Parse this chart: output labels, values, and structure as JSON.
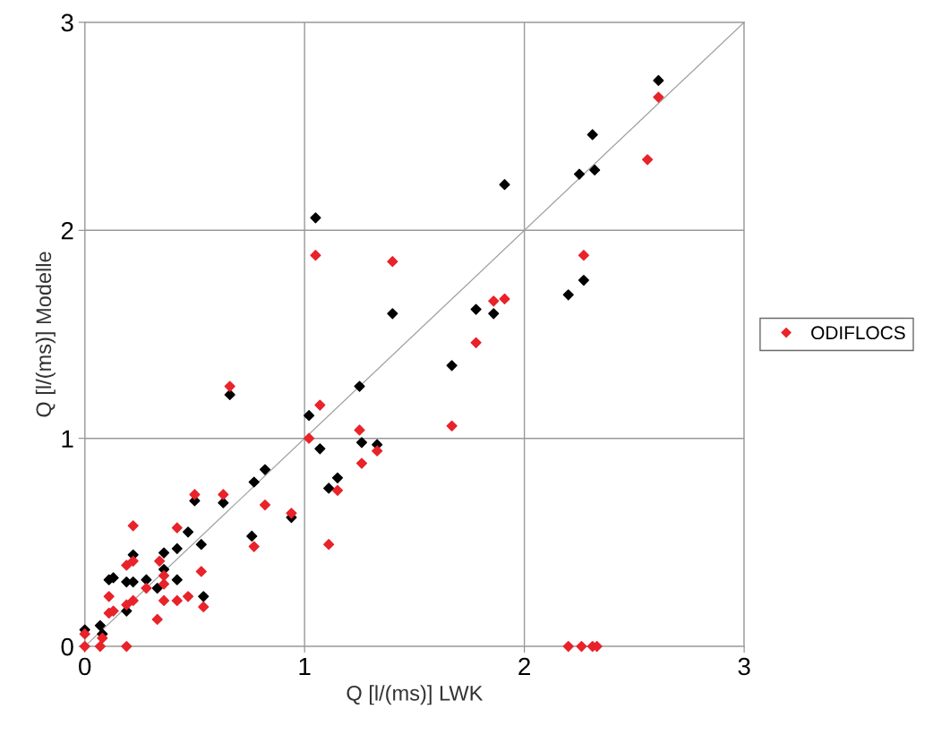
{
  "chart_data": {
    "type": "scatter",
    "xlabel": "Q [l/(ms)] LWK",
    "ylabel": "Q [l/(ms)] Modelle",
    "xlim": [
      0,
      3
    ],
    "ylim": [
      0,
      3
    ],
    "xticks": [
      0,
      1,
      2,
      3
    ],
    "yticks": [
      0,
      1,
      2,
      3
    ],
    "grid": true,
    "legend": "right",
    "marker": "diamond",
    "series": [
      {
        "color": "#000000",
        "x": [
          0,
          0.07,
          0.08,
          0.11,
          0.13,
          0.19,
          0.22,
          0.19,
          0.22,
          0.28,
          0.33,
          0.36,
          0.36,
          0.42,
          0.42,
          0.47,
          0.5,
          0.54,
          0.53,
          0.63,
          0.66,
          0.76,
          0.77,
          0.82,
          0.94,
          1.02,
          1.07,
          1.15,
          1.11,
          1.25,
          1.26,
          1.33,
          1.05,
          1.4,
          1.91,
          1.78,
          1.86,
          2.61,
          2.31,
          2.25,
          2.32,
          2.27,
          2.2,
          1.67
        ],
        "values": [
          0.08,
          0.1,
          0.06,
          0.32,
          0.33,
          0.31,
          0.31,
          0.17,
          0.44,
          0.32,
          0.28,
          0.45,
          0.37,
          0.47,
          0.32,
          0.55,
          0.7,
          0.24,
          0.49,
          0.69,
          1.21,
          0.53,
          0.79,
          0.85,
          0.62,
          1.11,
          0.95,
          0.81,
          0.76,
          1.25,
          0.98,
          0.97,
          2.06,
          1.6,
          2.22,
          1.62,
          1.6,
          2.72,
          2.46,
          2.27,
          2.29,
          1.76,
          1.69,
          1.35
        ]
      },
      {
        "name": "ODIFLOCS",
        "color": "#e8232a",
        "x": [
          0,
          0,
          0.07,
          0.08,
          0.19,
          0.11,
          0.11,
          0.13,
          0.19,
          0.22,
          0.22,
          0.19,
          0.22,
          0.28,
          0.33,
          0.34,
          0.36,
          0.36,
          0.36,
          0.42,
          0.42,
          0.47,
          0.5,
          0.53,
          0.54,
          0.63,
          0.66,
          0.77,
          0.82,
          0.94,
          1.07,
          1.02,
          1.15,
          1.11,
          1.25,
          1.26,
          1.33,
          1.05,
          1.4,
          1.86,
          1.91,
          1.78,
          2.61,
          2.56,
          2.27,
          1.67,
          2.2,
          2.26,
          2.31,
          2.33
        ],
        "values": [
          0.06,
          0.0,
          0.0,
          0.04,
          0.0,
          0.24,
          0.16,
          0.17,
          0.39,
          0.41,
          0.58,
          0.2,
          0.22,
          0.28,
          0.13,
          0.41,
          0.3,
          0.34,
          0.22,
          0.22,
          0.57,
          0.24,
          0.73,
          0.36,
          0.19,
          0.73,
          1.25,
          0.48,
          0.68,
          0.64,
          1.16,
          1.0,
          0.75,
          0.49,
          1.04,
          0.88,
          0.94,
          1.88,
          1.85,
          1.66,
          1.67,
          1.46,
          2.64,
          2.34,
          1.88,
          1.06,
          0,
          0,
          0,
          0
        ]
      },
      {
        "type": "line",
        "color": "#a0a0a0",
        "x": [
          0,
          3
        ],
        "values": [
          0,
          3
        ],
        "marker": "none"
      }
    ]
  }
}
